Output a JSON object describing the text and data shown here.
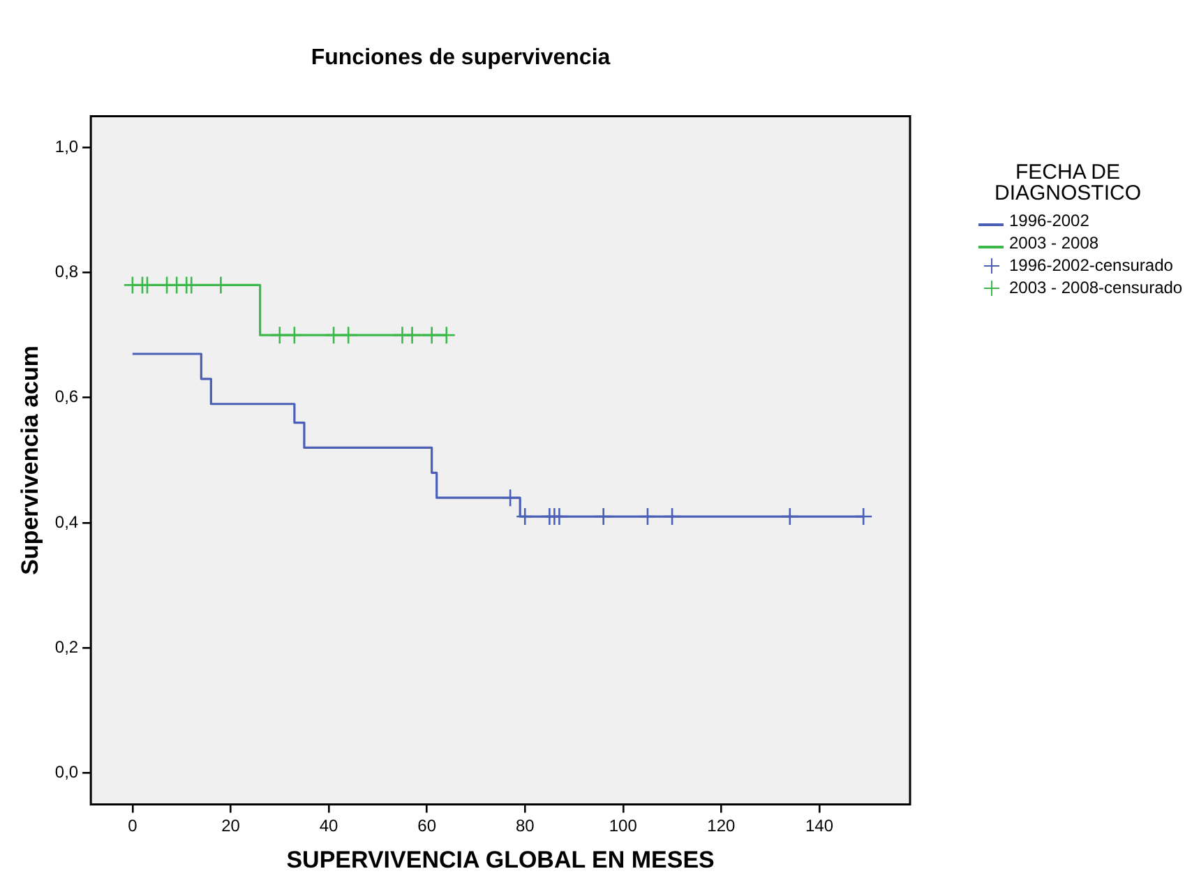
{
  "chart_data": {
    "type": "step",
    "title": "Funciones de supervivencia",
    "xlabel": "SUPERVIVENCIA GLOBAL EN MESES",
    "ylabel": "Supervivencia acum",
    "legend_title": "FECHA DE DIAGNOSTICO",
    "legend": "right",
    "grid": false,
    "xlim": [
      -8.5,
      158.5
    ],
    "xticks": [
      0,
      20,
      40,
      60,
      80,
      100,
      120,
      140
    ],
    "ylim": [
      -0.05,
      1.05
    ],
    "yticks": [
      {
        "value": 0,
        "label": "0,0"
      },
      {
        "value": 0.2,
        "label": "0,2"
      },
      {
        "value": 0.4,
        "label": "0,4"
      },
      {
        "value": 0.6,
        "label": "0,6"
      },
      {
        "value": 0.8,
        "label": "0,8"
      },
      {
        "value": 1,
        "label": "1,0"
      }
    ],
    "series": [
      {
        "type": "step",
        "name": "1996-2002",
        "color": "#4a5fb5",
        "x": [
          0,
          14,
          16,
          33,
          35,
          61,
          62,
          79,
          149
        ],
        "values": [
          0.67,
          0.63,
          0.59,
          0.56,
          0.52,
          0.48,
          0.44,
          0.41,
          0.41
        ]
      },
      {
        "type": "step",
        "name": "2003 - 2008",
        "color": "#3cb94a",
        "x": [
          0,
          26,
          64
        ],
        "values": [
          0.78,
          0.7,
          0.7
        ]
      },
      {
        "type": "scatter",
        "name": "1996-2002-censurado",
        "color": "#4a5fb5",
        "marker": "cross",
        "x": [
          77,
          80,
          85,
          86,
          87,
          96,
          105,
          110,
          134,
          149
        ],
        "values": [
          0.44,
          0.41,
          0.41,
          0.41,
          0.41,
          0.41,
          0.41,
          0.41,
          0.41,
          0.41
        ]
      },
      {
        "type": "scatter",
        "name": "2003 - 2008-censurado",
        "color": "#3cb94a",
        "marker": "cross",
        "x": [
          0,
          2,
          3,
          7,
          9,
          11,
          12,
          18,
          30,
          33,
          41,
          44,
          55,
          57,
          61,
          64
        ],
        "values": [
          0.78,
          0.78,
          0.78,
          0.78,
          0.78,
          0.78,
          0.78,
          0.78,
          0.7,
          0.7,
          0.7,
          0.7,
          0.7,
          0.7,
          0.7,
          0.7
        ]
      }
    ]
  }
}
